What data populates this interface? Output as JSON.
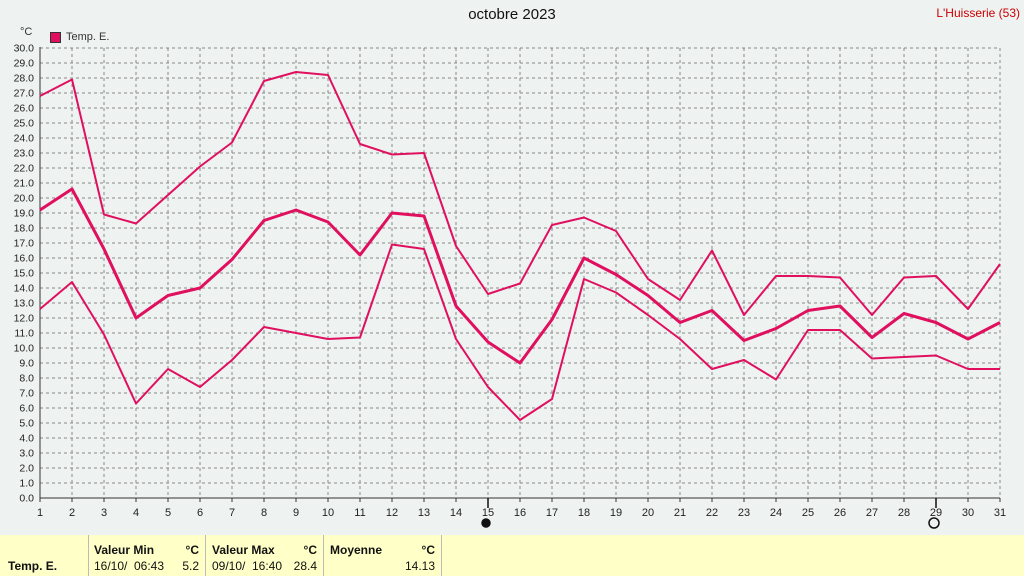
{
  "header": {
    "title": "octobre 2023",
    "station": "L'Huisserie (53)",
    "unit": "°C",
    "legend": "Temp. E."
  },
  "chart_data": {
    "type": "line",
    "x": [
      1,
      2,
      3,
      4,
      5,
      6,
      7,
      8,
      9,
      10,
      11,
      12,
      13,
      14,
      15,
      16,
      17,
      18,
      19,
      20,
      21,
      22,
      23,
      24,
      25,
      26,
      27,
      28,
      29,
      30,
      31
    ],
    "ylim": [
      0,
      30
    ],
    "ytick_step": 1,
    "grid": true,
    "legend_position": "top-left",
    "series_color": "#e0105f",
    "series": [
      {
        "values": [
          26.8,
          27.9,
          18.9,
          18.3,
          20.2,
          22.1,
          23.7,
          27.8,
          28.4,
          28.2,
          23.6,
          22.9,
          23.0,
          16.8,
          13.6,
          14.3,
          18.2,
          18.7,
          17.8,
          14.6,
          13.2,
          16.5,
          12.2,
          14.8,
          14.8,
          14.7,
          12.2,
          14.7,
          14.8,
          12.6,
          15.6
        ]
      },
      {
        "values": [
          19.2,
          20.6,
          16.6,
          12.0,
          13.5,
          14.0,
          15.9,
          18.5,
          19.2,
          18.4,
          16.2,
          19.0,
          18.8,
          12.8,
          10.4,
          9.0,
          11.9,
          16.0,
          14.9,
          13.5,
          11.7,
          12.5,
          10.5,
          11.3,
          12.5,
          12.8,
          10.7,
          12.3,
          11.7,
          10.6,
          11.7
        ]
      },
      {
        "values": [
          12.6,
          14.4,
          10.9,
          6.3,
          8.6,
          7.4,
          9.2,
          11.4,
          11.0,
          10.6,
          10.7,
          16.9,
          16.6,
          10.6,
          7.4,
          5.2,
          6.6,
          14.6,
          13.7,
          12.2,
          10.6,
          8.6,
          9.2,
          7.9,
          11.2,
          11.2,
          9.3,
          9.4,
          9.5,
          8.6,
          8.6
        ]
      }
    ],
    "markers": [
      {
        "x": 15,
        "symbol": "filled-circle"
      },
      {
        "x": 29,
        "symbol": "open-circle"
      }
    ]
  },
  "footer": {
    "row_label": "Temp. E.",
    "min_title": "Valeur Min",
    "min_unit": "°C",
    "min_date": "16/10/",
    "min_time": "06:43",
    "min_value": "5.2",
    "max_title": "Valeur Max",
    "max_unit": "°C",
    "max_date": "09/10/",
    "max_time": "16:40",
    "max_value": "28.4",
    "avg_title": "Moyenne",
    "avg_unit": "°C",
    "avg_value": "14.13"
  }
}
